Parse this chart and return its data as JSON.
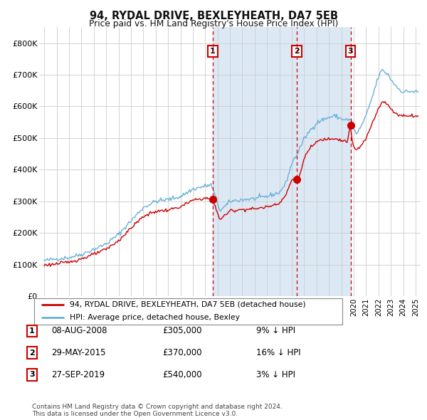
{
  "title": "94, RYDAL DRIVE, BEXLEYHEATH, DA7 5EB",
  "subtitle": "Price paid vs. HM Land Registry's House Price Index (HPI)",
  "xlim": [
    1994.6,
    2025.4
  ],
  "ylim": [
    0,
    850000
  ],
  "yticks": [
    0,
    100000,
    200000,
    300000,
    400000,
    500000,
    600000,
    700000,
    800000
  ],
  "ytick_labels": [
    "£0",
    "£100K",
    "£200K",
    "£300K",
    "£400K",
    "£500K",
    "£600K",
    "£700K",
    "£800K"
  ],
  "sale_dates": [
    2008.6,
    2015.42,
    2019.74
  ],
  "sale_prices": [
    305000,
    370000,
    540000
  ],
  "sale_labels": [
    "1",
    "2",
    "3"
  ],
  "sale_info": [
    {
      "num": "1",
      "date": "08-AUG-2008",
      "price": "£305,000",
      "hpi": "9% ↓ HPI"
    },
    {
      "num": "2",
      "date": "29-MAY-2015",
      "price": "£370,000",
      "hpi": "16% ↓ HPI"
    },
    {
      "num": "3",
      "date": "27-SEP-2019",
      "price": "£540,000",
      "hpi": "3% ↓ HPI"
    }
  ],
  "legend_line1": "94, RYDAL DRIVE, BEXLEYHEATH, DA7 5EB (detached house)",
  "legend_line2": "HPI: Average price, detached house, Bexley",
  "footer": "Contains HM Land Registry data © Crown copyright and database right 2024.\nThis data is licensed under the Open Government Licence v3.0.",
  "hpi_color": "#6ab0d8",
  "price_color": "#cc0000",
  "bg_shade_color": "#dce9f5",
  "grid_color": "#cccccc",
  "title_color": "#111111"
}
